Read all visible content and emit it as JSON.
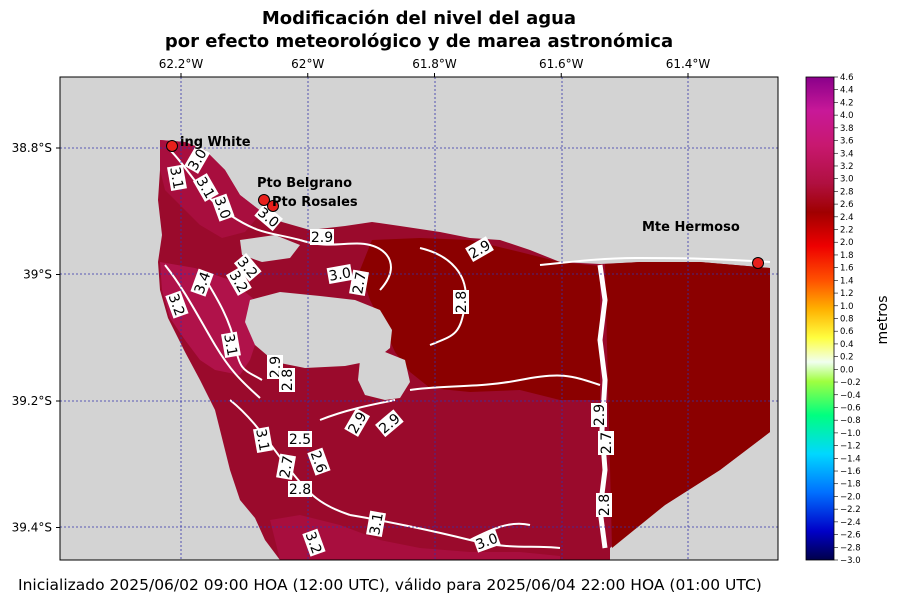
{
  "title_line1": "Modificación del nivel del agua",
  "title_line2": "por efecto meteorológico y de marea astronómica",
  "footer": "Inicializado 2025/06/02 09:00 HOA (12:00 UTC), válido para 2025/06/04 22:00 HOA (01:00 UTC)",
  "colorbar_label": "metros",
  "longitude_ticks": [
    {
      "label": "62.2°W",
      "lon": -62.2
    },
    {
      "label": "62°W",
      "lon": -62.0
    },
    {
      "label": "61.8°W",
      "lon": -61.8
    },
    {
      "label": "61.6°W",
      "lon": -61.6
    },
    {
      "label": "61.4°W",
      "lon": -61.4
    }
  ],
  "latitude_ticks": [
    {
      "label": "38.8°S",
      "lat": -38.8
    },
    {
      "label": "39°S",
      "lat": -39.0
    },
    {
      "label": "39.2°S",
      "lat": -39.2
    },
    {
      "label": "39.4°S",
      "lat": -39.4
    }
  ],
  "colorbar_ticks": [
    "4.6",
    "4.4",
    "4.2",
    "4.0",
    "3.8",
    "3.6",
    "3.4",
    "3.2",
    "3.0",
    "2.8",
    "2.6",
    "2.4",
    "2.2",
    "2.0",
    "1.8",
    "1.6",
    "1.4",
    "1.2",
    "1.0",
    "0.8",
    "0.6",
    "0.4",
    "0.2",
    "0.0",
    "−0.2",
    "−0.4",
    "−0.6",
    "−0.8",
    "−1.0",
    "−1.2",
    "−1.4",
    "−1.6",
    "−1.8",
    "−2.0",
    "−2.2",
    "−2.4",
    "−2.6",
    "−2.8",
    "−3.0"
  ],
  "colors": {
    "land": "#d3d3d3",
    "water_main": "#9a0a2c",
    "water_dark": "#8b0000",
    "water_high": "#b0124a",
    "contour": "#ffffff",
    "grid": "#3333aa",
    "station": "#e8201c"
  },
  "stations": [
    {
      "name": "Ing White",
      "label": "ing White"
    },
    {
      "name": "Pto Belgrano",
      "label": "Pto Belgrano"
    },
    {
      "name": "Pto Rosales",
      "label": "Pto Rosales"
    },
    {
      "name": "Mte Hermoso",
      "label": "Mte Hermoso"
    }
  ],
  "contour_labels": [
    "3.0",
    "3.1",
    "3.1",
    "3.0",
    "3.0",
    "2.9",
    "3.0",
    "2.7",
    "2.9",
    "2.8",
    "3.2",
    "3.4",
    "3.2",
    "3.2",
    "3.1",
    "2.9",
    "2.8",
    "2.9",
    "2.9",
    "2.5",
    "3.1",
    "2.7",
    "2.6",
    "2.8",
    "3.1",
    "3.2",
    "3.0",
    "2.9",
    "2.7",
    "2.8"
  ]
}
